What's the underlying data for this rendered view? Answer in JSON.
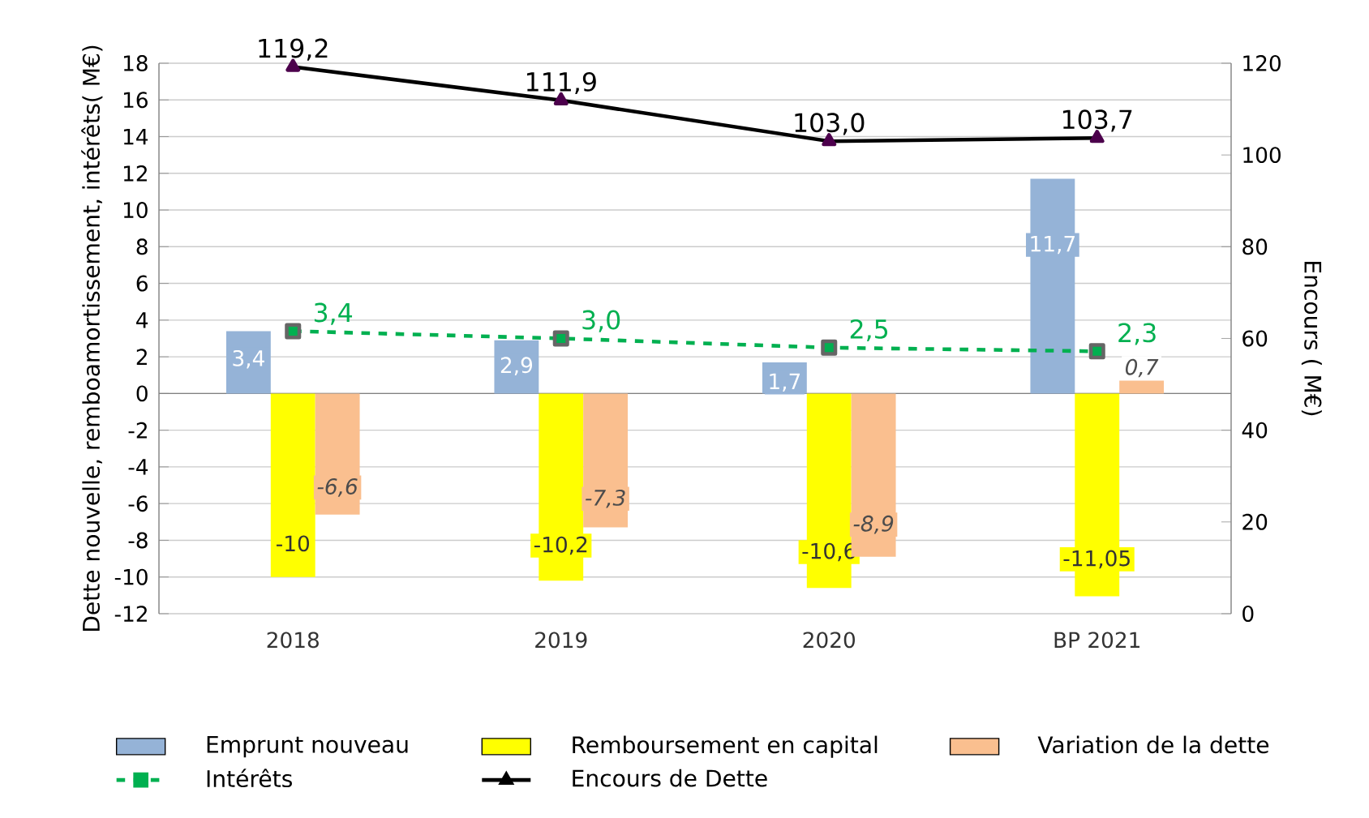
{
  "chart_data": {
    "type": "bar",
    "ylabel": "Dette nouvelle, remboamortissement, intérêts( M€)",
    "y2label": "Encours ( M€)",
    "categories": [
      "2018",
      "2019",
      "2020",
      "BP 2021"
    ],
    "series": [
      {
        "name": "Emprunt nouveau",
        "color": "#95b3d7",
        "values": [
          3.4,
          2.9,
          1.7,
          11.7
        ],
        "value_labels": [
          "3,4",
          "2,9",
          "1,7",
          "11,7"
        ]
      },
      {
        "name": "Remboursement en capital",
        "color": "#ffff00",
        "values": [
          -10,
          -10.2,
          -10.6,
          -11.05
        ],
        "value_labels": [
          "-10",
          "-10,2",
          "-10,6",
          "-11,05"
        ]
      },
      {
        "name": "Variation de la dette",
        "color": "#fabf8f",
        "values": [
          -6.6,
          -7.3,
          -8.9,
          0.7
        ],
        "value_labels": [
          "-6,6",
          "-7,3",
          "-8,9",
          "0,7"
        ]
      },
      {
        "name": "Intérêts",
        "type": "line",
        "color": "#00b050",
        "marker": "square",
        "line_style": "dashed",
        "values": [
          3.4,
          3.0,
          2.5,
          2.3
        ],
        "value_labels": [
          "3,4",
          "3,0",
          "2,5",
          "2,3"
        ]
      },
      {
        "name": "Encours de Dette",
        "type": "line",
        "axis": "y2",
        "color": "#000000",
        "marker": "triangle",
        "line_style": "solid",
        "values": [
          119.2,
          111.9,
          103.0,
          103.7
        ],
        "value_labels": [
          "119,2",
          "111,9",
          "103,0",
          "103,7"
        ]
      }
    ],
    "ylim": [
      -12,
      18
    ],
    "yticks": [
      -12,
      -10,
      -8,
      -6,
      -4,
      -2,
      0,
      2,
      4,
      6,
      8,
      10,
      12,
      14,
      16,
      18
    ],
    "y2lim": [
      0,
      120
    ],
    "y2ticks": [
      0,
      20,
      40,
      60,
      80,
      100,
      120
    ],
    "grid": "y",
    "legend": "bottom"
  }
}
